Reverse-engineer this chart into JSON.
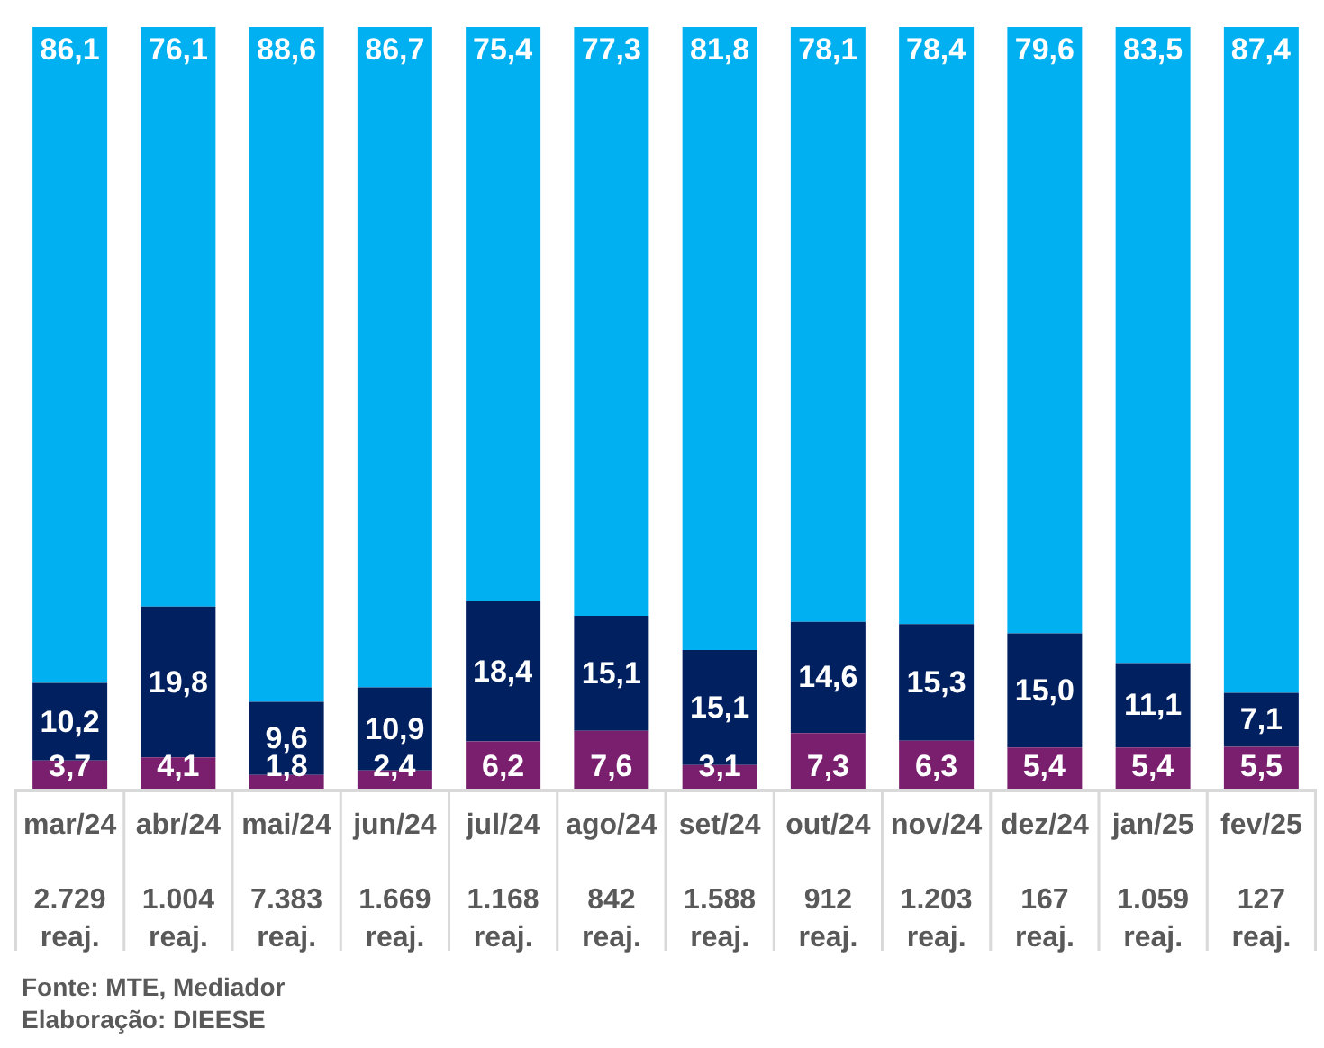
{
  "chart_data": {
    "type": "bar",
    "stacked": true,
    "categories": [
      "mar/24\n\n2.729\nreaj.",
      "abr/24\n\n1.004\nreaj.",
      "mai/24\n\n7.383\nreaj.",
      "jun/24\n\n1.669\nreaj.",
      "jul/24\n\n1.168\nreaj.",
      "ago/24\n\n842\nreaj.",
      "set/24\n\n1.588\nreaj.",
      "out/24\n\n912\nreaj.",
      "nov/24\n\n1.203\nreaj.",
      "dez/24\n\n167\nreaj.",
      "jan/25\n\n1.059\nreaj.",
      "fev/25\n\n127\nreaj."
    ],
    "series": [
      {
        "color": "#7a1f6e",
        "values": [
          3.7,
          4.1,
          1.8,
          2.4,
          6.2,
          7.6,
          3.1,
          7.3,
          6.3,
          5.4,
          5.4,
          5.5
        ],
        "value_labels": [
          "3,7",
          "4,1",
          "1,8",
          "2,4",
          "6,2",
          "7,6",
          "3,1",
          "7,3",
          "6,3",
          "5,4",
          "5,4",
          "5,5"
        ]
      },
      {
        "color": "#002060",
        "values": [
          10.2,
          19.8,
          9.6,
          10.9,
          18.4,
          15.1,
          15.1,
          14.6,
          15.3,
          15.0,
          11.1,
          7.1
        ],
        "value_labels": [
          "10,2",
          "19,8",
          "9,6",
          "10,9",
          "18,4",
          "15,1",
          "15,1",
          "14,6",
          "15,3",
          "15,0",
          "11,1",
          "7,1"
        ]
      },
      {
        "color": "#00b0f0",
        "values": [
          86.1,
          76.1,
          88.6,
          86.7,
          75.4,
          77.3,
          81.8,
          78.1,
          78.4,
          79.6,
          83.5,
          87.4
        ],
        "value_labels": [
          "86,1",
          "76,1",
          "88,6",
          "86,7",
          "75,4",
          "77,3",
          "81,8",
          "78,1",
          "78,4",
          "79,6",
          "83,5",
          "87,4"
        ]
      }
    ],
    "ylim": [
      0,
      100
    ],
    "tick_labels": "x",
    "annotations": [
      "Fonte: MTE, Mediador",
      "Elaboração: DIEESE"
    ]
  }
}
